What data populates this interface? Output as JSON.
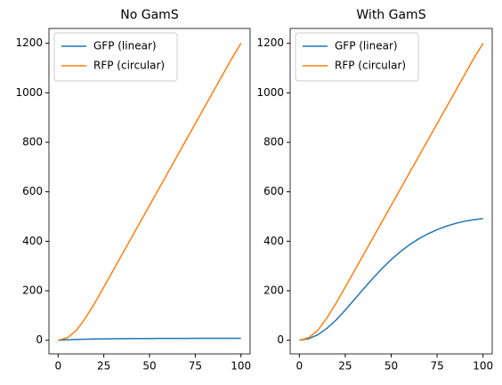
{
  "chart_data": [
    {
      "type": "line",
      "title": "No GamS",
      "x": [
        0,
        5,
        10,
        15,
        20,
        25,
        30,
        35,
        40,
        45,
        50,
        55,
        60,
        65,
        70,
        75,
        80,
        85,
        90,
        95,
        100
      ],
      "series": [
        {
          "name": "GFP (linear)",
          "color": "#1f77b4",
          "values": [
            0,
            2,
            3.5,
            4.5,
            5.2,
            5.8,
            6.2,
            6.5,
            6.8,
            7,
            7.2,
            7.3,
            7.4,
            7.5,
            7.6,
            7.7,
            7.8,
            7.8,
            7.9,
            7.9,
            8
          ]
        },
        {
          "name": "RFP (circular)",
          "color": "#ff7f0e",
          "values": [
            0,
            10,
            40,
            90,
            150,
            215,
            281,
            347,
            413,
            479,
            545,
            611,
            677,
            743,
            809,
            875,
            941,
            1007,
            1073,
            1139,
            1200
          ]
        }
      ],
      "xlim": [
        -5,
        105
      ],
      "ylim": [
        -55,
        1260
      ],
      "xticks": [
        0,
        25,
        50,
        75,
        100
      ],
      "yticks": [
        0,
        200,
        400,
        600,
        800,
        1000,
        1200
      ],
      "legend": "upper left"
    },
    {
      "type": "line",
      "title": "With GamS",
      "x": [
        0,
        5,
        10,
        15,
        20,
        25,
        30,
        35,
        40,
        45,
        50,
        55,
        60,
        65,
        70,
        75,
        80,
        85,
        90,
        95,
        100
      ],
      "series": [
        {
          "name": "GFP (linear)",
          "color": "#1f77b4",
          "values": [
            0,
            6,
            22,
            48,
            82,
            122,
            165,
            208,
            250,
            290,
            326,
            358,
            386,
            410,
            430,
            447,
            461,
            472,
            481,
            487,
            492
          ]
        },
        {
          "name": "RFP (circular)",
          "color": "#ff7f0e",
          "values": [
            0,
            10,
            40,
            90,
            150,
            215,
            281,
            347,
            413,
            479,
            545,
            611,
            677,
            743,
            809,
            875,
            941,
            1007,
            1073,
            1139,
            1200
          ]
        }
      ],
      "xlim": [
        -5,
        105
      ],
      "ylim": [
        -55,
        1260
      ],
      "xticks": [
        0,
        25,
        50,
        75,
        100
      ],
      "yticks": [
        0,
        200,
        400,
        600,
        800,
        1000,
        1200
      ],
      "legend": "upper left"
    }
  ]
}
